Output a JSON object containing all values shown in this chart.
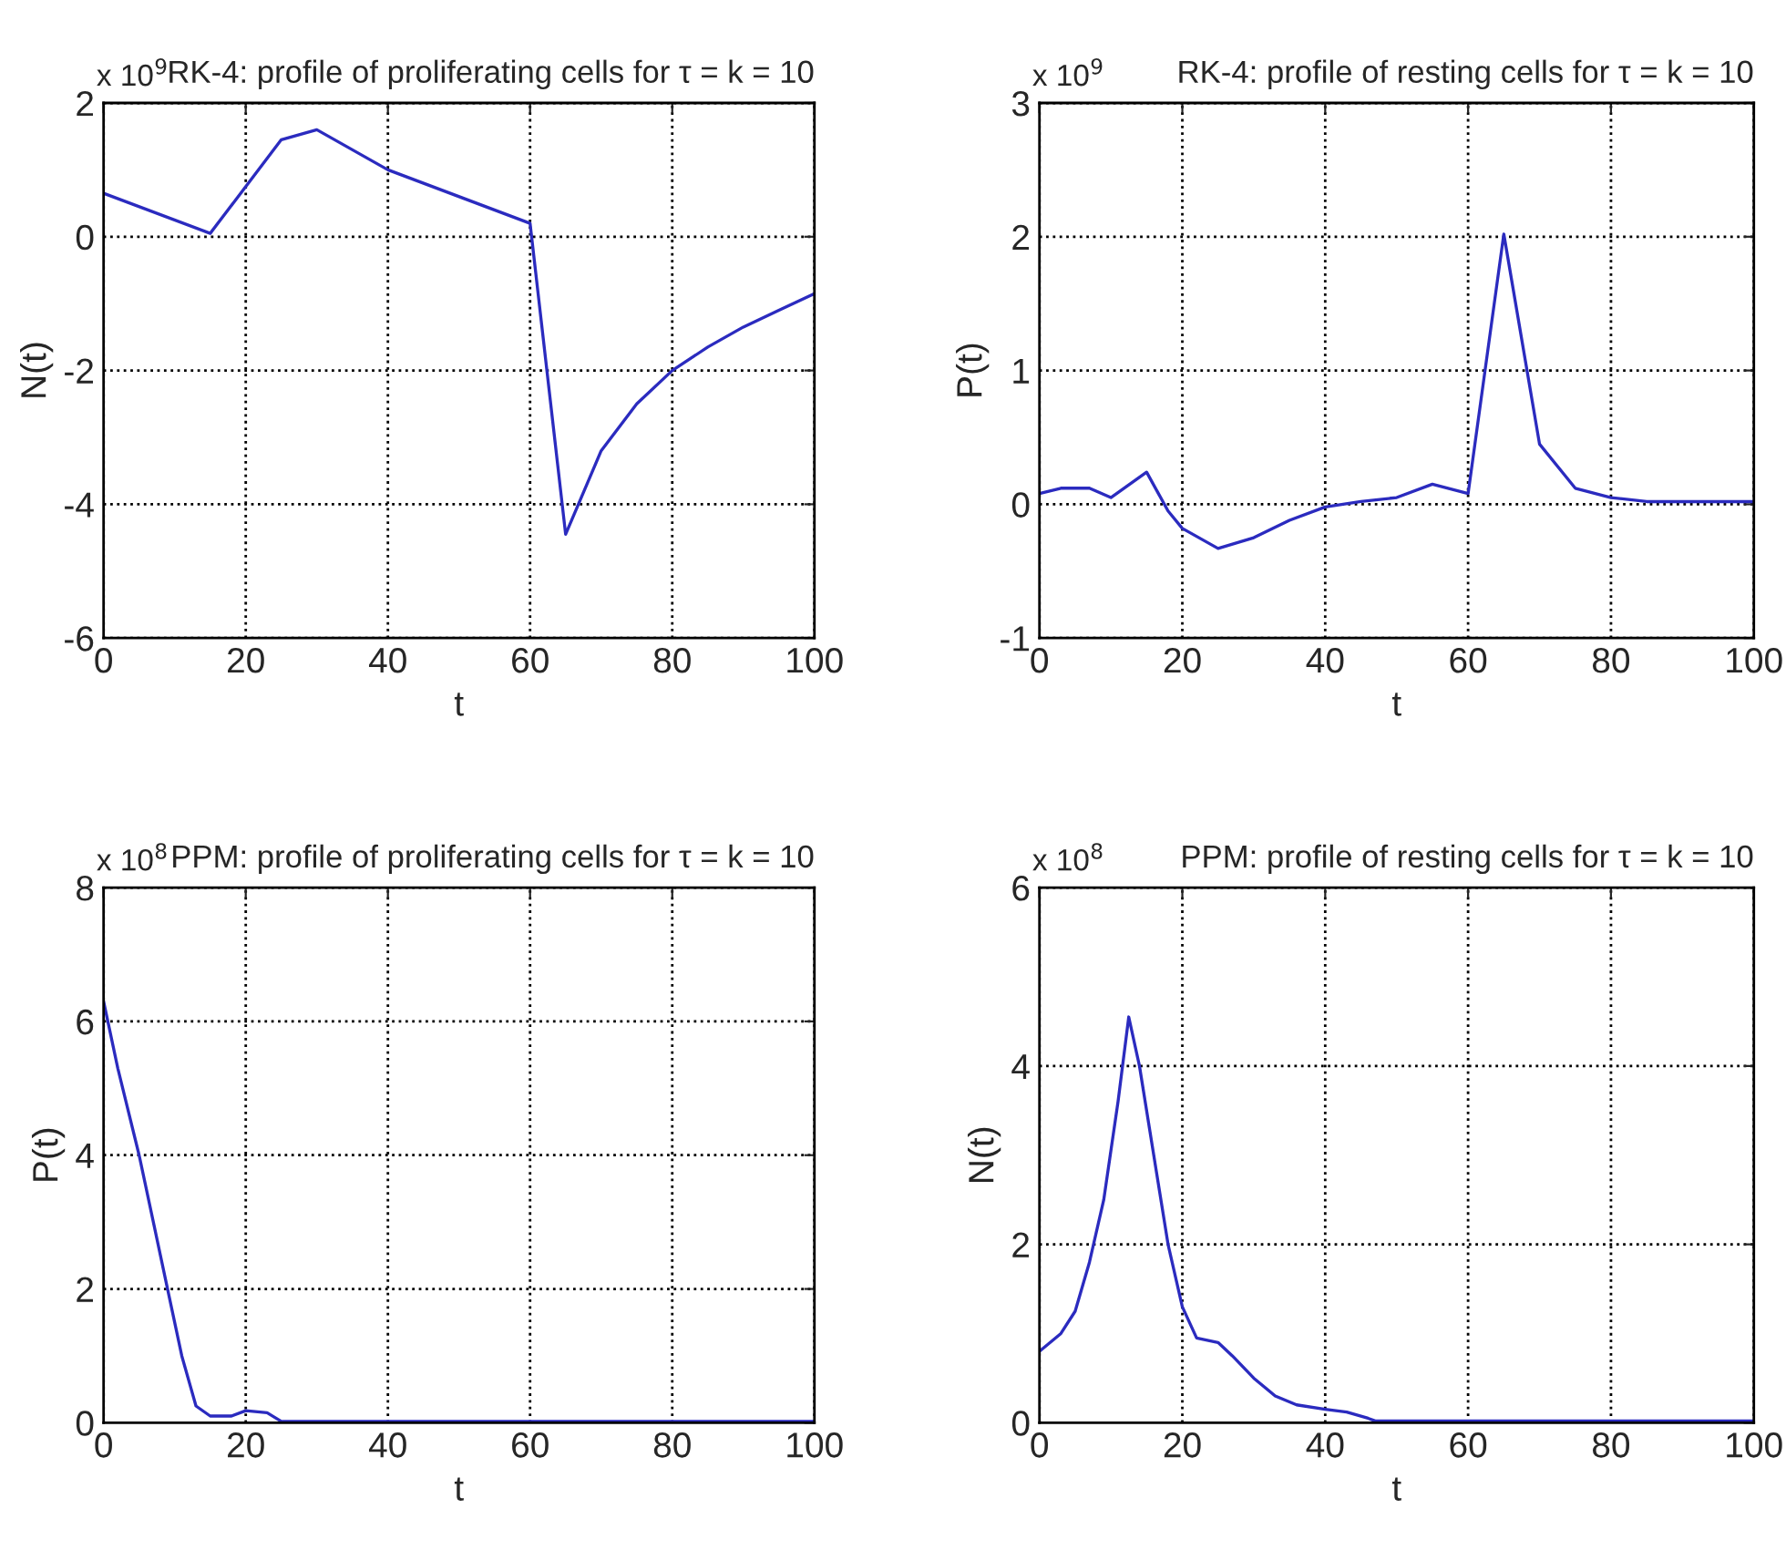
{
  "chart_data": [
    {
      "type": "line",
      "title": "RK-4: profile of proliferating cells for τ = k = 10",
      "xlabel": "t",
      "ylabel": "N(t)",
      "annotations": [
        "x 10$^{9}$"
      ],
      "x": [
        0,
        15,
        25,
        30,
        40,
        60,
        65,
        70,
        75,
        80,
        85,
        90,
        95,
        100
      ],
      "series": [
        {
          "color": "#2b2bbf",
          "values": [
            0.65,
            0.05,
            1.45,
            1.6,
            1.0,
            0.2,
            -4.45,
            -3.2,
            -2.5,
            -2.0,
            -1.65,
            -1.35,
            -1.1,
            -0.85
          ]
        }
      ],
      "xlim": [
        0,
        100
      ],
      "xticks": [
        0,
        20,
        40,
        60,
        80,
        100
      ],
      "ylim": [
        -6,
        2
      ],
      "yticks": [
        -6,
        -4,
        -2,
        0,
        2
      ],
      "grid": true,
      "line_style": "solid"
    },
    {
      "type": "line",
      "title": "RK-4: profile of resting cells for τ = k = 10",
      "xlabel": "t",
      "ylabel": "P(t)",
      "annotations": [
        "x 10$^{9}$"
      ],
      "x": [
        0,
        3,
        7,
        10,
        15,
        18,
        20,
        25,
        30,
        35,
        40,
        45,
        50,
        55,
        60,
        65,
        70,
        75,
        80,
        85,
        100
      ],
      "series": [
        {
          "color": "#2b2bbf",
          "values": [
            0.08,
            0.12,
            0.12,
            0.05,
            0.24,
            -0.05,
            -0.18,
            -0.33,
            -0.25,
            -0.12,
            -0.02,
            0.02,
            0.05,
            0.15,
            0.08,
            2.02,
            0.45,
            0.12,
            0.05,
            0.02,
            0.02
          ]
        }
      ],
      "xlim": [
        0,
        100
      ],
      "xticks": [
        0,
        20,
        40,
        60,
        80,
        100
      ],
      "ylim": [
        -1,
        3
      ],
      "yticks": [
        -1,
        0,
        1,
        2,
        3
      ],
      "grid": true,
      "line_style": "solid"
    },
    {
      "type": "line",
      "title": "PPM: profile of proliferating cells for τ = k = 10",
      "xlabel": "t",
      "ylabel": "P(t)",
      "annotations": [
        "x 10$^{8}$"
      ],
      "x": [
        0,
        2,
        5,
        7,
        9,
        11,
        13,
        15,
        18,
        20,
        23,
        25,
        100
      ],
      "series": [
        {
          "color": "#2b2bbf",
          "values": [
            6.3,
            5.3,
            4.0,
            3.0,
            2.0,
            1.0,
            0.25,
            0.1,
            0.1,
            0.18,
            0.15,
            0.02,
            0.02
          ]
        }
      ],
      "xlim": [
        0,
        100
      ],
      "xticks": [
        0,
        20,
        40,
        60,
        80,
        100
      ],
      "ylim": [
        0,
        8
      ],
      "yticks": [
        0,
        2,
        4,
        6,
        8
      ],
      "grid": true,
      "line_style": "solid"
    },
    {
      "type": "line",
      "title": "PPM: profile of resting cells for τ = k = 10",
      "xlabel": "t",
      "ylabel": "N(t)",
      "annotations": [
        "x 10$^{8}$"
      ],
      "x": [
        0,
        3,
        5,
        7,
        9,
        11,
        12.5,
        14,
        16,
        18,
        20,
        22,
        25,
        27,
        30,
        33,
        36,
        40,
        43,
        46,
        47,
        100
      ],
      "series": [
        {
          "color": "#2b2bbf",
          "values": [
            0.8,
            1.0,
            1.25,
            1.8,
            2.5,
            3.6,
            4.55,
            4.0,
            3.0,
            2.0,
            1.3,
            0.95,
            0.9,
            0.75,
            0.5,
            0.3,
            0.2,
            0.15,
            0.12,
            0.05,
            0.02,
            0.02
          ]
        }
      ],
      "xlim": [
        0,
        100
      ],
      "xticks": [
        0,
        20,
        40,
        60,
        80,
        100
      ],
      "ylim": [
        0,
        6
      ],
      "yticks": [
        0,
        2,
        4,
        6
      ],
      "grid": true,
      "line_style": "solid"
    }
  ]
}
